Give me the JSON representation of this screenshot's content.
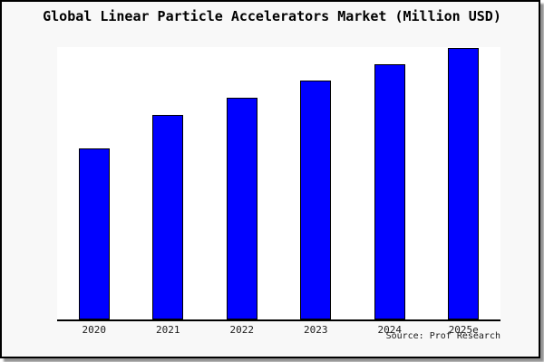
{
  "title": "Global Linear Particle Accelerators Market (Million USD)",
  "source": "Source: Prof Research",
  "colors": {
    "bar_fill": "#0000ff",
    "bar_border": "#000000",
    "card_background": "#f8f8f8",
    "plot_background": "#ffffff",
    "axis": "#000000",
    "text": "#000000",
    "shadow": "#6e6e6e"
  },
  "chart_data": {
    "type": "bar",
    "title": "Global Linear Particle Accelerators Market (Million USD)",
    "categories": [
      "2020",
      "2021",
      "2022",
      "2023",
      "2024",
      "2025e"
    ],
    "values": [
      63.0,
      75.3,
      81.7,
      88.0,
      94.0,
      100.0
    ],
    "xlabel": "",
    "ylabel": "",
    "ylim": [
      0,
      100
    ],
    "grid": false,
    "legend": false,
    "note": "Y-axis has no tick labels in the source image; values are relative bar heights expressed as a percentage of the tallest (2025e) bar."
  }
}
